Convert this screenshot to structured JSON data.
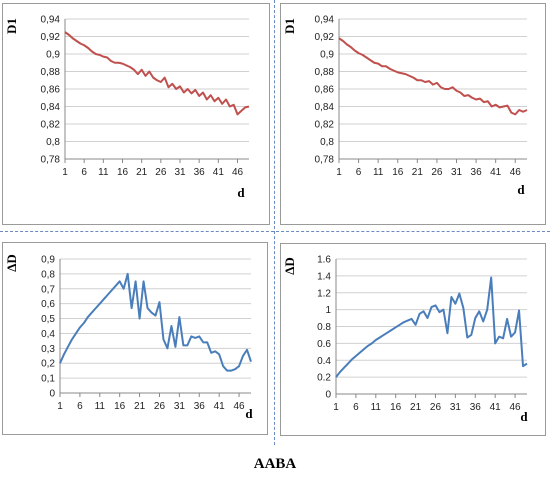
{
  "caption": "AABA",
  "chart_data": [
    {
      "type": "line",
      "ylabel": "D1",
      "xlabel": "d",
      "ylim": [
        0.78,
        0.94
      ],
      "y_ticks": [
        0.78,
        0.8,
        0.82,
        0.84,
        0.86,
        0.88,
        0.9,
        0.92,
        0.94
      ],
      "y_tick_labels": [
        "0,78",
        "0,8",
        "0,82",
        "0,84",
        "0,86",
        "0,88",
        "0,9",
        "0,92",
        "0,94"
      ],
      "x_ticks": [
        1,
        6,
        11,
        16,
        21,
        26,
        31,
        36,
        41,
        46
      ],
      "x_tick_labels": [
        "1",
        "6",
        "11",
        "16",
        "21",
        "26",
        "31",
        "36",
        "41",
        "46"
      ],
      "xlim": [
        1,
        49
      ],
      "grid": "horizontal",
      "color": "#c0504d",
      "x": [
        1,
        2,
        3,
        4,
        5,
        6,
        7,
        8,
        9,
        10,
        11,
        12,
        13,
        14,
        15,
        16,
        17,
        18,
        19,
        20,
        21,
        22,
        23,
        24,
        25,
        26,
        27,
        28,
        29,
        30,
        31,
        32,
        33,
        34,
        35,
        36,
        37,
        38,
        39,
        40,
        41,
        42,
        43,
        44,
        45,
        46,
        47,
        48,
        49
      ],
      "values": [
        0.925,
        0.922,
        0.918,
        0.915,
        0.912,
        0.91,
        0.907,
        0.903,
        0.9,
        0.899,
        0.897,
        0.896,
        0.892,
        0.89,
        0.89,
        0.889,
        0.887,
        0.885,
        0.882,
        0.877,
        0.882,
        0.875,
        0.88,
        0.873,
        0.87,
        0.868,
        0.873,
        0.862,
        0.866,
        0.86,
        0.863,
        0.856,
        0.86,
        0.855,
        0.859,
        0.852,
        0.856,
        0.848,
        0.853,
        0.846,
        0.85,
        0.843,
        0.848,
        0.84,
        0.842,
        0.831,
        0.835,
        0.839,
        0.84
      ]
    },
    {
      "type": "line",
      "ylabel": "D1",
      "xlabel": "d",
      "ylim": [
        0.78,
        0.94
      ],
      "y_ticks": [
        0.78,
        0.8,
        0.82,
        0.84,
        0.86,
        0.88,
        0.9,
        0.92,
        0.94
      ],
      "y_tick_labels": [
        "0,78",
        "0,8",
        "0,82",
        "0,84",
        "0,86",
        "0,88",
        "0,9",
        "0,92",
        "0,94"
      ],
      "x_ticks": [
        1,
        6,
        11,
        16,
        21,
        26,
        31,
        36,
        41,
        46
      ],
      "x_tick_labels": [
        "1",
        "6",
        "11",
        "16",
        "21",
        "26",
        "31",
        "36",
        "41",
        "46"
      ],
      "xlim": [
        1,
        49
      ],
      "grid": "horizontal",
      "color": "#c0504d",
      "x": [
        1,
        2,
        3,
        4,
        5,
        6,
        7,
        8,
        9,
        10,
        11,
        12,
        13,
        14,
        15,
        16,
        17,
        18,
        19,
        20,
        21,
        22,
        23,
        24,
        25,
        26,
        27,
        28,
        29,
        30,
        31,
        32,
        33,
        34,
        35,
        36,
        37,
        38,
        39,
        40,
        41,
        42,
        43,
        44,
        45,
        46,
        47,
        48,
        49
      ],
      "values": [
        0.918,
        0.915,
        0.911,
        0.908,
        0.904,
        0.901,
        0.899,
        0.896,
        0.893,
        0.89,
        0.889,
        0.886,
        0.886,
        0.883,
        0.881,
        0.879,
        0.878,
        0.877,
        0.875,
        0.873,
        0.87,
        0.87,
        0.868,
        0.869,
        0.865,
        0.867,
        0.862,
        0.86,
        0.86,
        0.862,
        0.858,
        0.856,
        0.852,
        0.853,
        0.85,
        0.848,
        0.849,
        0.845,
        0.846,
        0.84,
        0.842,
        0.839,
        0.84,
        0.841,
        0.833,
        0.831,
        0.836,
        0.834,
        0.836
      ]
    },
    {
      "type": "line",
      "ylabel": "ΔD",
      "xlabel": "d",
      "ylim": [
        0,
        0.9
      ],
      "y_ticks": [
        0,
        0.1,
        0.2,
        0.3,
        0.4,
        0.5,
        0.6,
        0.7,
        0.8,
        0.9
      ],
      "y_tick_labels": [
        "0",
        "0,1",
        "0,2",
        "0,3",
        "0,4",
        "0,5",
        "0,6",
        "0,7",
        "0,8",
        "0,9"
      ],
      "x_ticks": [
        1,
        6,
        11,
        16,
        21,
        26,
        31,
        36,
        41,
        46
      ],
      "x_tick_labels": [
        "1",
        "6",
        "11",
        "16",
        "21",
        "26",
        "31",
        "36",
        "41",
        "46"
      ],
      "xlim": [
        1,
        49
      ],
      "grid": "horizontal",
      "color": "#4a7ebb",
      "x": [
        1,
        2,
        3,
        4,
        5,
        6,
        7,
        8,
        9,
        10,
        11,
        12,
        13,
        14,
        15,
        16,
        17,
        18,
        19,
        20,
        21,
        22,
        23,
        24,
        25,
        26,
        27,
        28,
        29,
        30,
        31,
        32,
        33,
        34,
        35,
        36,
        37,
        38,
        39,
        40,
        41,
        42,
        43,
        44,
        45,
        46,
        47,
        48,
        49
      ],
      "values": [
        0.2,
        0.26,
        0.31,
        0.36,
        0.4,
        0.44,
        0.47,
        0.51,
        0.54,
        0.57,
        0.6,
        0.63,
        0.66,
        0.69,
        0.72,
        0.75,
        0.7,
        0.8,
        0.57,
        0.75,
        0.5,
        0.75,
        0.57,
        0.54,
        0.52,
        0.61,
        0.36,
        0.3,
        0.45,
        0.31,
        0.51,
        0.32,
        0.32,
        0.38,
        0.37,
        0.38,
        0.34,
        0.34,
        0.27,
        0.28,
        0.26,
        0.18,
        0.15,
        0.15,
        0.16,
        0.18,
        0.25,
        0.29,
        0.21
      ]
    },
    {
      "type": "line",
      "ylabel": "ΔD",
      "xlabel": "d",
      "ylim": [
        0,
        1.6
      ],
      "y_ticks": [
        0,
        0.2,
        0.4,
        0.6,
        0.8,
        1,
        1.2,
        1.4,
        1.6
      ],
      "y_tick_labels": [
        "0",
        "0.2",
        "0.4",
        "0.6",
        "0.8",
        "1",
        "1.2",
        "1.4",
        "1.6"
      ],
      "x_ticks": [
        1,
        6,
        11,
        16,
        21,
        26,
        31,
        36,
        41,
        46
      ],
      "x_tick_labels": [
        "1",
        "6",
        "11",
        "16",
        "21",
        "26",
        "31",
        "36",
        "41",
        "46"
      ],
      "xlim": [
        1,
        49
      ],
      "grid": "horizontal",
      "color": "#4a7ebb",
      "x": [
        1,
        2,
        3,
        4,
        5,
        6,
        7,
        8,
        9,
        10,
        11,
        12,
        13,
        14,
        15,
        16,
        17,
        18,
        19,
        20,
        21,
        22,
        23,
        24,
        25,
        26,
        27,
        28,
        29,
        30,
        31,
        32,
        33,
        34,
        35,
        36,
        37,
        38,
        39,
        40,
        41,
        42,
        43,
        44,
        45,
        46,
        47,
        48,
        49
      ],
      "values": [
        0.2,
        0.26,
        0.31,
        0.36,
        0.41,
        0.45,
        0.49,
        0.53,
        0.57,
        0.6,
        0.64,
        0.67,
        0.7,
        0.73,
        0.76,
        0.79,
        0.82,
        0.85,
        0.87,
        0.89,
        0.82,
        0.95,
        0.98,
        0.9,
        1.03,
        1.05,
        0.97,
        1.0,
        0.72,
        1.15,
        1.07,
        1.19,
        1.02,
        0.67,
        0.7,
        0.9,
        0.98,
        0.86,
        1.0,
        1.38,
        0.6,
        0.68,
        0.66,
        0.89,
        0.68,
        0.73,
        0.99,
        0.33,
        0.36
      ]
    }
  ]
}
